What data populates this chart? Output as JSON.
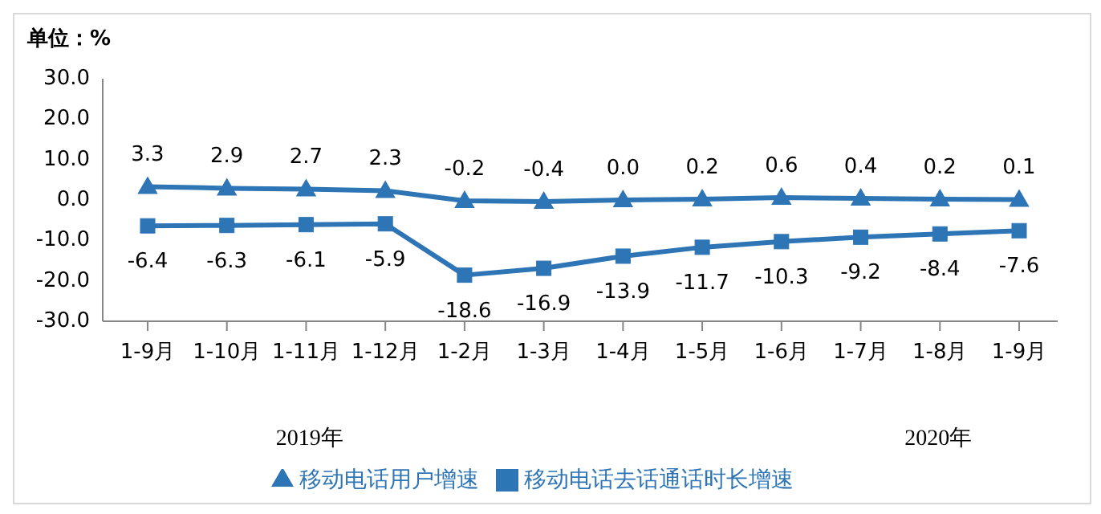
{
  "chart_data": {
    "type": "line",
    "ylabel": "单位：%",
    "categories": [
      "1-9月",
      "1-10月",
      "1-11月",
      "1-12月",
      "1-2月",
      "1-3月",
      "1-4月",
      "1-5月",
      "1-6月",
      "1-7月",
      "1-8月",
      "1-9月"
    ],
    "series": [
      {
        "name": "移动电话用户增速",
        "color": "#2e75b6",
        "marker": "triangle",
        "values": [
          3.3,
          2.9,
          2.7,
          2.3,
          -0.2,
          -0.4,
          0,
          0.2,
          0.6,
          0.4,
          0.2,
          0.1
        ],
        "value_labels": [
          "3.3",
          "2.9",
          "2.7",
          "2.3",
          "-0.2",
          "-0.4",
          "0.0",
          "0.2",
          "0.6",
          "0.4",
          "0.2",
          "0.1"
        ]
      },
      {
        "name": "移动电话去话通话时长增速",
        "color": "#2e75b6",
        "marker": "square",
        "values": [
          -6.4,
          -6.3,
          -6.1,
          -5.9,
          -18.6,
          -16.9,
          -13.9,
          -11.7,
          -10.3,
          -9.2,
          -8.4,
          -7.6
        ],
        "value_labels": [
          "-6.4",
          "-6.3",
          "-6.1",
          "-5.9",
          "-18.6",
          "-16.9",
          "-13.9",
          "-11.7",
          "-10.3",
          "-9.2",
          "-8.4",
          "-7.6"
        ]
      }
    ],
    "ylim": [
      -30,
      30
    ],
    "yticks": [
      {
        "value": -30,
        "label": "-30.0"
      },
      {
        "value": -20,
        "label": "-20.0"
      },
      {
        "value": -10,
        "label": "-10.0"
      },
      {
        "value": 0,
        "label": "0.0"
      },
      {
        "value": 10,
        "label": "10.0"
      },
      {
        "value": 20,
        "label": "20.0"
      },
      {
        "value": 30,
        "label": "30.0"
      }
    ],
    "grid": false,
    "legend": "bottom",
    "annotations": [
      "2019年",
      "2020年"
    ]
  }
}
